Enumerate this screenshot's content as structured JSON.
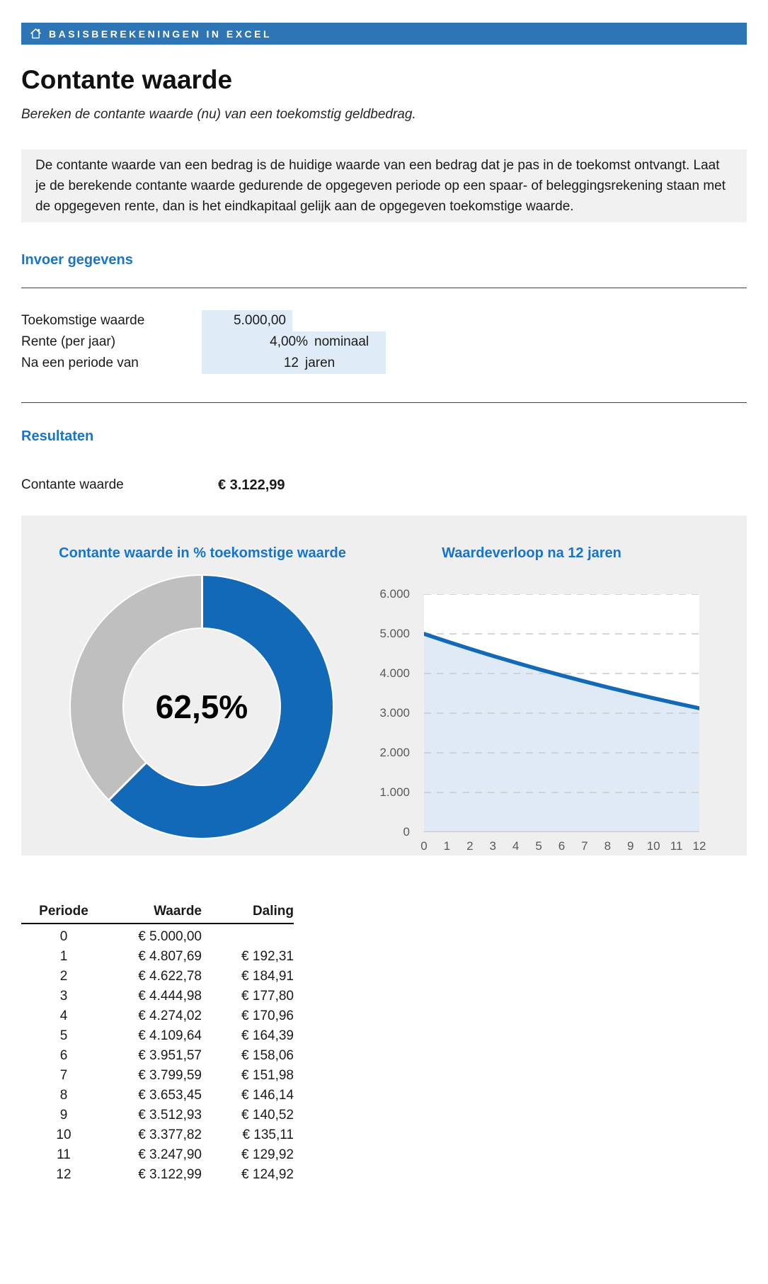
{
  "topbar": {
    "title": "BASISBEREKENINGEN IN EXCEL"
  },
  "page": {
    "title": "Contante waarde",
    "subtitle": "Bereken de contante waarde (nu) van een toekomstig geldbedrag.",
    "description": "De contante waarde van een bedrag is de huidige waarde van een bedrag dat je pas in de toekomst ontvangt. Laat je de berekende contante waarde gedurende de opgegeven periode op een spaar- of beleggingsrekening staan met de opgegeven rente, dan is het eindkapitaal gelijk aan de opgegeven toekomstige waarde."
  },
  "inputs": {
    "heading": "Invoer gegevens",
    "rows": [
      {
        "label": "Toekomstige waarde",
        "value": "5.000,00",
        "unit": ""
      },
      {
        "label": "Rente (per jaar)",
        "value": "4,00%",
        "unit": "nominaal"
      },
      {
        "label": "Na een periode van",
        "value": "12",
        "unit": "jaren"
      }
    ]
  },
  "results": {
    "heading": "Resultaten",
    "label": "Contante waarde",
    "value": "€ 3.122,99"
  },
  "chart_data": [
    {
      "type": "pie",
      "donut": true,
      "title": "Contante waarde in % toekomstige waarde",
      "center_label": "62,5%",
      "start_at_top_clockwise": true,
      "slices": [
        {
          "name": "contante waarde",
          "value": 62.5,
          "color": "#1169B8"
        },
        {
          "name": "restant",
          "value": 37.5,
          "color": "#BFBFBF"
        }
      ]
    },
    {
      "type": "line",
      "title": "Waardeverloop na 12 jaren",
      "x": [
        0,
        1,
        2,
        3,
        4,
        5,
        6,
        7,
        8,
        9,
        10,
        11,
        12
      ],
      "series": [
        {
          "name": "Waarde",
          "values": [
            5000,
            4807.69,
            4622.78,
            4444.98,
            4274.02,
            4109.64,
            3951.57,
            3799.59,
            3653.45,
            3512.93,
            3377.82,
            3247.9,
            3122.99
          ]
        }
      ],
      "ylim": [
        0,
        6000
      ],
      "ytick_values": [
        0,
        1000,
        2000,
        3000,
        4000,
        5000,
        6000
      ],
      "ytick_labels": [
        "0",
        "1.000",
        "2.000",
        "3.000",
        "4.000",
        "5.000",
        "6.000"
      ],
      "grid": "dashed-horizontal",
      "area_fill": true,
      "line_color": "#1169B8",
      "area_color": "#DFEAF6",
      "grid_color": "#C9C9C9",
      "legend": "none"
    }
  ],
  "table": {
    "headers": [
      "Periode",
      "Waarde",
      "Daling"
    ],
    "rows": [
      [
        "0",
        "€ 5.000,00",
        ""
      ],
      [
        "1",
        "€ 4.807,69",
        "€ 192,31"
      ],
      [
        "2",
        "€ 4.622,78",
        "€ 184,91"
      ],
      [
        "3",
        "€ 4.444,98",
        "€ 177,80"
      ],
      [
        "4",
        "€ 4.274,02",
        "€ 170,96"
      ],
      [
        "5",
        "€ 4.109,64",
        "€ 164,39"
      ],
      [
        "6",
        "€ 3.951,57",
        "€ 158,06"
      ],
      [
        "7",
        "€ 3.799,59",
        "€ 151,98"
      ],
      [
        "8",
        "€ 3.653,45",
        "€ 146,14"
      ],
      [
        "9",
        "€ 3.512,93",
        "€ 140,52"
      ],
      [
        "10",
        "€ 3.377,82",
        "€ 135,11"
      ],
      [
        "11",
        "€ 3.247,90",
        "€ 129,92"
      ],
      [
        "12",
        "€ 3.122,99",
        "€ 124,92"
      ]
    ]
  },
  "colors": {
    "topbar": "#2E75B6",
    "heading_blue": "#1C74C5",
    "chart_blue": "#1169B8",
    "donut_gray": "#BFBFBF",
    "field_bg": "#DFECF8",
    "panel_bg": "#EFEFEF",
    "descbox_bg": "#F1F1F1"
  }
}
